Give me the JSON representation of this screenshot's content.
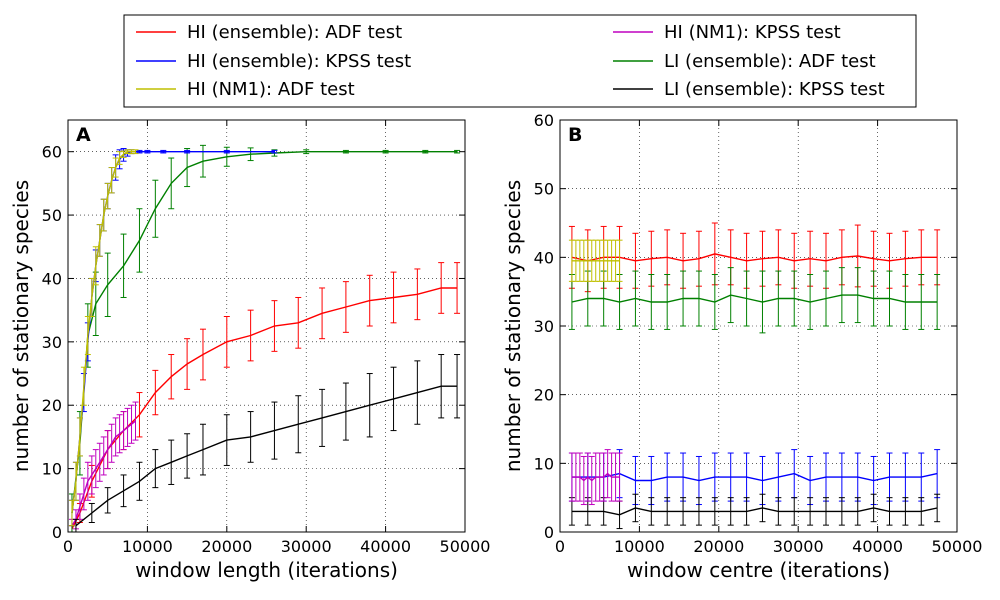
{
  "legend": {
    "entries": [
      {
        "label": "HI (ensemble): ADF test",
        "color": "#ff0000"
      },
      {
        "label": "HI (ensemble): KPSS test",
        "color": "#0000ff"
      },
      {
        "label": "HI (NM1): ADF test",
        "color": "#bfbf00"
      },
      {
        "label": "HI (NM1): KPSS test",
        "color": "#bf00bf"
      },
      {
        "label": "LI (ensemble): ADF test",
        "color": "#008000"
      },
      {
        "label": "LI (ensemble): KPSS test",
        "color": "#000000"
      }
    ],
    "placement": "top, two columns"
  },
  "chart_data": [
    {
      "panel_label": "A",
      "type": "line",
      "xlabel": "window length (iterations)",
      "ylabel": "number of stationary species",
      "xlim": [
        0,
        50000
      ],
      "ylim": [
        0,
        65
      ],
      "xticks": [
        0,
        10000,
        20000,
        30000,
        40000,
        50000
      ],
      "yticks": [
        0,
        10,
        20,
        30,
        40,
        50,
        60
      ],
      "grid": true,
      "error_bars": true,
      "series": [
        {
          "name": "HI (ensemble): ADF test",
          "color": "#ff0000",
          "x": [
            500,
            1500,
            3000,
            5000,
            7000,
            9000,
            11000,
            13000,
            15000,
            17000,
            20000,
            23000,
            26000,
            29000,
            32000,
            35000,
            38000,
            41000,
            44000,
            47000,
            49000
          ],
          "y": [
            0.5,
            3,
            8,
            13,
            16,
            18.5,
            22,
            24.5,
            26.5,
            28,
            30,
            31,
            32.5,
            33,
            34.5,
            35.5,
            36.5,
            37,
            37.5,
            38.5,
            38.5
          ],
          "err": [
            0.5,
            1.5,
            2.5,
            3,
            3,
            3.5,
            3.5,
            3.5,
            4,
            4,
            4,
            4,
            4,
            4,
            4,
            4,
            4,
            4,
            4,
            4,
            4
          ]
        },
        {
          "name": "HI (NM1): KPSS test",
          "color": "#bf00bf",
          "x": [
            500,
            1000,
            1500,
            2000,
            2500,
            3000,
            3500,
            4000,
            4500,
            5000,
            5500,
            6000,
            6500,
            7000,
            7500,
            8000,
            8500
          ],
          "y": [
            1,
            2,
            4,
            6,
            8,
            9,
            10,
            11,
            12,
            13,
            14,
            15,
            15.5,
            16,
            16.5,
            17,
            17.5
          ],
          "err": [
            1,
            1.5,
            2,
            2.5,
            3,
            3,
            3,
            3,
            3,
            3,
            3,
            3,
            3,
            3,
            3,
            3,
            3
          ]
        },
        {
          "name": "LI (ensemble): KPSS test",
          "color": "#000000",
          "x": [
            1000,
            3000,
            5000,
            7000,
            9000,
            11000,
            13000,
            15000,
            17000,
            20000,
            23000,
            26000,
            29000,
            32000,
            35000,
            38000,
            41000,
            44000,
            47000,
            49000
          ],
          "y": [
            1,
            3,
            5,
            6.5,
            8,
            10,
            11,
            12,
            13,
            14.5,
            15,
            16,
            17,
            18,
            19,
            20,
            21,
            22,
            23,
            23
          ],
          "err": [
            1,
            1.5,
            2,
            2.5,
            3,
            3,
            3.5,
            3.5,
            4,
            4,
            4,
            4.5,
            4.5,
            4.5,
            4.5,
            5,
            5,
            5,
            5,
            5
          ]
        },
        {
          "name": "LI (ensemble): ADF test",
          "color": "#008000",
          "x": [
            500,
            1500,
            2500,
            3500,
            5000,
            7000,
            9000,
            11000,
            13000,
            15000,
            17000,
            20000,
            23000,
            26000,
            30000,
            35000,
            40000,
            45000,
            49000
          ],
          "y": [
            3,
            14,
            31,
            36,
            39,
            42,
            46,
            51,
            55,
            57.5,
            58.5,
            59.2,
            59.6,
            59.8,
            60,
            60,
            60,
            60,
            60
          ],
          "err": [
            3,
            5,
            5,
            5,
            5,
            5,
            5,
            4.5,
            4,
            3,
            2.5,
            1.5,
            1,
            0.5,
            0.3,
            0.2,
            0.2,
            0.2,
            0.2
          ]
        },
        {
          "name": "HI (ensemble): KPSS test",
          "color": "#0000ff",
          "x": [
            500,
            1000,
            1500,
            2000,
            2500,
            3000,
            3500,
            4000,
            4500,
            5000,
            5500,
            6000,
            6500,
            7000,
            7500,
            8000,
            9000,
            10000,
            12000,
            15000,
            20000,
            26000
          ],
          "y": [
            3,
            8,
            15,
            22,
            30,
            37,
            42,
            46,
            50,
            53,
            55.5,
            57.5,
            58.8,
            59.5,
            59.8,
            60,
            60,
            60,
            60,
            60,
            60,
            60
          ],
          "err": [
            2,
            3,
            3,
            3,
            3,
            3,
            2.5,
            2.5,
            2.5,
            2,
            2,
            2,
            1.5,
            1,
            0.5,
            0.3,
            0.2,
            0.2,
            0.2,
            0.2,
            0.2,
            0.2
          ]
        },
        {
          "name": "HI (NM1): ADF test",
          "color": "#bfbf00",
          "x": [
            500,
            1000,
            1500,
            2000,
            2500,
            3000,
            3500,
            4000,
            4500,
            5000,
            5500,
            6000,
            6500,
            7000,
            7500,
            8000,
            8500
          ],
          "y": [
            3,
            8,
            15,
            23,
            31,
            37,
            42,
            46,
            50,
            53,
            55.5,
            57.5,
            59,
            59.6,
            60,
            60,
            60
          ],
          "err": [
            2,
            3,
            3,
            3,
            3,
            3,
            3,
            2.5,
            2.5,
            2,
            2,
            1.5,
            1,
            0.5,
            0.3,
            0.3,
            0.3
          ]
        }
      ]
    },
    {
      "panel_label": "B",
      "type": "line",
      "xlabel": "window centre (iterations)",
      "ylabel": "number of stationary species",
      "xlim": [
        0,
        50000
      ],
      "ylim": [
        0,
        60
      ],
      "xticks": [
        0,
        10000,
        20000,
        30000,
        40000,
        50000
      ],
      "yticks": [
        0,
        10,
        20,
        30,
        40,
        50,
        60
      ],
      "grid": true,
      "error_bars": true,
      "series": [
        {
          "name": "HI (ensemble): ADF test",
          "color": "#ff0000",
          "x": [
            1500,
            3500,
            5500,
            7500,
            9500,
            11500,
            13500,
            15500,
            17500,
            19500,
            21500,
            23500,
            25500,
            27500,
            29500,
            31500,
            33500,
            35500,
            37500,
            39500,
            41500,
            43500,
            45500,
            47500
          ],
          "y": [
            40,
            39.5,
            40,
            40,
            39.5,
            39.8,
            40,
            39.5,
            39.8,
            40.5,
            40,
            39.5,
            39.8,
            40,
            39.5,
            39.8,
            39.5,
            40,
            40.2,
            39.8,
            39.5,
            39.8,
            40,
            40
          ],
          "err": [
            4.5,
            4.5,
            4.5,
            4.5,
            4,
            4,
            4,
            4,
            4,
            4.5,
            4,
            4,
            4,
            4,
            4,
            4,
            4,
            4,
            4.5,
            4,
            4,
            4,
            4,
            4
          ]
        },
        {
          "name": "HI (ensemble): KPSS test",
          "color": "#0000ff",
          "x": [
            1500,
            3500,
            5500,
            7500,
            9500,
            11500,
            13500,
            15500,
            17500,
            19500,
            21500,
            23500,
            25500,
            27500,
            29500,
            31500,
            33500,
            35500,
            37500,
            39500,
            41500,
            43500,
            45500,
            47500
          ],
          "y": [
            8,
            8,
            8,
            8.5,
            7.5,
            7.5,
            8,
            8,
            7.5,
            8,
            8,
            8,
            7.5,
            8,
            8.5,
            7.5,
            8,
            8,
            8,
            7.5,
            8,
            8,
            8,
            8.5
          ],
          "err": [
            3.5,
            3.5,
            3.5,
            3.5,
            3.5,
            3.5,
            3.5,
            3.5,
            3.5,
            3.5,
            3.5,
            3.5,
            3.5,
            3.5,
            3.5,
            3.5,
            3.5,
            3.5,
            3.5,
            3.5,
            3.5,
            3.5,
            3.5,
            3.5
          ]
        },
        {
          "name": "LI (ensemble): ADF test",
          "color": "#008000",
          "x": [
            1500,
            3500,
            5500,
            7500,
            9500,
            11500,
            13500,
            15500,
            17500,
            19500,
            21500,
            23500,
            25500,
            27500,
            29500,
            31500,
            33500,
            35500,
            37500,
            39500,
            41500,
            43500,
            45500,
            47500
          ],
          "y": [
            33.5,
            34,
            34,
            33.5,
            34,
            33.5,
            33.5,
            34,
            34,
            33.5,
            34.5,
            34,
            33.5,
            34,
            34,
            33.5,
            34,
            34.5,
            34.5,
            34,
            34,
            33.5,
            33.5,
            33.5
          ],
          "err": [
            4,
            4,
            4,
            4,
            4,
            4,
            4,
            4,
            4,
            4,
            4,
            4,
            4.5,
            4,
            4,
            4,
            4,
            4,
            4,
            4,
            4,
            4,
            4,
            4
          ]
        },
        {
          "name": "LI (ensemble): KPSS test",
          "color": "#000000",
          "x": [
            1500,
            3500,
            5500,
            7500,
            9500,
            11500,
            13500,
            15500,
            17500,
            19500,
            21500,
            23500,
            25500,
            27500,
            29500,
            31500,
            33500,
            35500,
            37500,
            39500,
            41500,
            43500,
            45500,
            47500
          ],
          "y": [
            3,
            3,
            3,
            2.5,
            3.5,
            3,
            3,
            3,
            3,
            3,
            3,
            3,
            3.5,
            3,
            3,
            3,
            3,
            3,
            3,
            3.5,
            3,
            3,
            3,
            3.5
          ],
          "err": [
            2,
            2,
            2,
            2,
            2,
            2,
            2,
            2,
            2,
            2,
            2,
            2,
            2,
            2,
            2,
            2,
            2,
            2,
            2,
            2,
            2,
            2,
            2,
            2
          ]
        },
        {
          "name": "HI (NM1): ADF test",
          "color": "#bfbf00",
          "x": [
            1500,
            2000,
            2500,
            3000,
            3500,
            4000,
            4500,
            5000,
            5500,
            6000,
            6500,
            7000,
            7500
          ],
          "y": [
            39.5,
            39.5,
            39.5,
            39.5,
            39.5,
            39.5,
            39.5,
            39.5,
            39.5,
            39.5,
            39.5,
            39.5,
            39.5
          ],
          "err": [
            3,
            3,
            3,
            3,
            3,
            3,
            3,
            3,
            3,
            3,
            3,
            3,
            3
          ]
        },
        {
          "name": "HI (NM1): KPSS test",
          "color": "#bf00bf",
          "x": [
            1500,
            2000,
            2500,
            3000,
            3500,
            4000,
            4500,
            5000,
            5500,
            6000,
            6500,
            7000,
            7500
          ],
          "y": [
            8,
            8,
            8,
            7.5,
            8,
            7.5,
            8,
            8,
            8,
            8.5,
            8,
            8,
            8
          ],
          "err": [
            3.5,
            3.5,
            3.5,
            3.5,
            3.5,
            3.5,
            3.5,
            3.5,
            3.5,
            3.5,
            3.5,
            3.5,
            3.5
          ]
        }
      ]
    }
  ]
}
